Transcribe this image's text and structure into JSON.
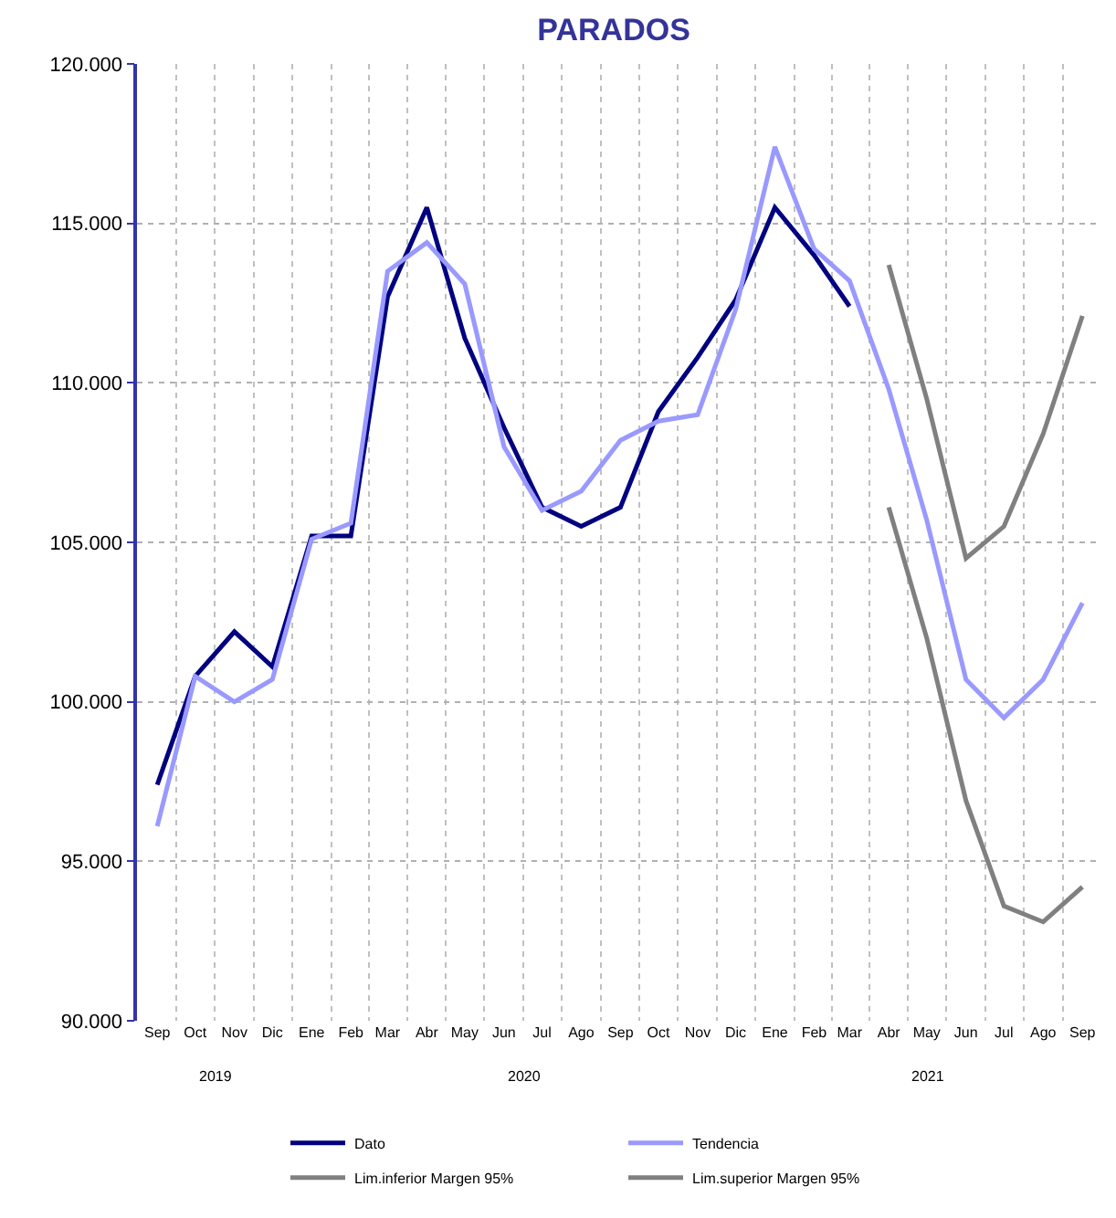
{
  "chart_data": {
    "type": "line",
    "title": "PARADOS",
    "x": [
      "2019-09",
      "2019-10",
      "2019-11",
      "2019-12",
      "2020-01",
      "2020-02",
      "2020-03",
      "2020-04",
      "2020-05",
      "2020-06",
      "2020-07",
      "2020-08",
      "2020-09",
      "2020-10",
      "2020-11",
      "2020-12",
      "2021-01",
      "2021-02",
      "2021-03",
      "2021-04",
      "2021-05",
      "2021-06",
      "2021-07",
      "2021-08",
      "2021-09"
    ],
    "series": [
      {
        "name": "Dato",
        "color": "#000080",
        "values": [
          97400,
          100800,
          102200,
          101100,
          105200,
          105200,
          112700,
          115500,
          111400,
          108600,
          106100,
          105500,
          106100,
          109100,
          110800,
          112600,
          115500,
          114000,
          112400,
          null,
          null,
          null,
          null,
          null,
          null
        ]
      },
      {
        "name": "Tendencia",
        "color": "#9999ff",
        "values": [
          96100,
          100800,
          100000,
          100700,
          105100,
          105600,
          113500,
          114400,
          113100,
          108000,
          106000,
          106600,
          108200,
          108800,
          109000,
          112300,
          117400,
          114200,
          113200,
          109800,
          105700,
          100700,
          99500,
          100700,
          103100
        ]
      },
      {
        "name": "Lim.inferior Margen 95%",
        "color": "#808080",
        "values": [
          null,
          null,
          null,
          null,
          null,
          null,
          null,
          null,
          null,
          null,
          null,
          null,
          null,
          null,
          null,
          null,
          null,
          null,
          null,
          106100,
          102000,
          96900,
          93600,
          93100,
          94200
        ]
      },
      {
        "name": "Lim.superior Margen 95%",
        "color": "#808080",
        "values": [
          null,
          null,
          null,
          null,
          null,
          null,
          null,
          null,
          null,
          null,
          null,
          null,
          null,
          null,
          null,
          null,
          null,
          null,
          null,
          113700,
          109500,
          104500,
          105500,
          108400,
          112100
        ]
      }
    ],
    "xlim": [
      "2019-08-16",
      "2021-09-16"
    ],
    "xticks": [
      {
        "value": "2019-09",
        "label": "Sep"
      },
      {
        "value": "2019-10",
        "label": "Oct"
      },
      {
        "value": "2019-11",
        "label": "Nov"
      },
      {
        "value": "2019-12",
        "label": "Dic"
      },
      {
        "value": "2020-01",
        "label": "Ene"
      },
      {
        "value": "2020-02",
        "label": "Feb"
      },
      {
        "value": "2020-03",
        "label": "Mar"
      },
      {
        "value": "2020-04",
        "label": "Abr"
      },
      {
        "value": "2020-05",
        "label": "May"
      },
      {
        "value": "2020-06",
        "label": "Jun"
      },
      {
        "value": "2020-07",
        "label": "Jul"
      },
      {
        "value": "2020-08",
        "label": "Ago"
      },
      {
        "value": "2020-09",
        "label": "Sep"
      },
      {
        "value": "2020-10",
        "label": "Oct"
      },
      {
        "value": "2020-11",
        "label": "Nov"
      },
      {
        "value": "2020-12",
        "label": "Dic"
      },
      {
        "value": "2021-01",
        "label": "Ene"
      },
      {
        "value": "2021-02",
        "label": "Feb"
      },
      {
        "value": "2021-03",
        "label": "Mar"
      },
      {
        "value": "2021-04",
        "label": "Abr"
      },
      {
        "value": "2021-05",
        "label": "May"
      },
      {
        "value": "2021-06",
        "label": "Jun"
      },
      {
        "value": "2021-07",
        "label": "Jul"
      },
      {
        "value": "2021-08",
        "label": "Ago"
      },
      {
        "value": "2021-09",
        "label": "Sep"
      }
    ],
    "ylim": [
      90000,
      120000
    ],
    "yticks": [
      {
        "value": 90000,
        "label": "90.000"
      },
      {
        "value": 95000,
        "label": "95.000"
      },
      {
        "value": 100000,
        "label": "100.000"
      },
      {
        "value": 105000,
        "label": "105.000"
      },
      {
        "value": 110000,
        "label": "110.000"
      },
      {
        "value": 115000,
        "label": "115.000"
      },
      {
        "value": 120000,
        "label": "120.000"
      }
    ],
    "annotations": [
      "2019",
      "2020",
      "2021"
    ],
    "grid": true,
    "legend": "bottom",
    "marker": "none",
    "line_style": "solid"
  }
}
